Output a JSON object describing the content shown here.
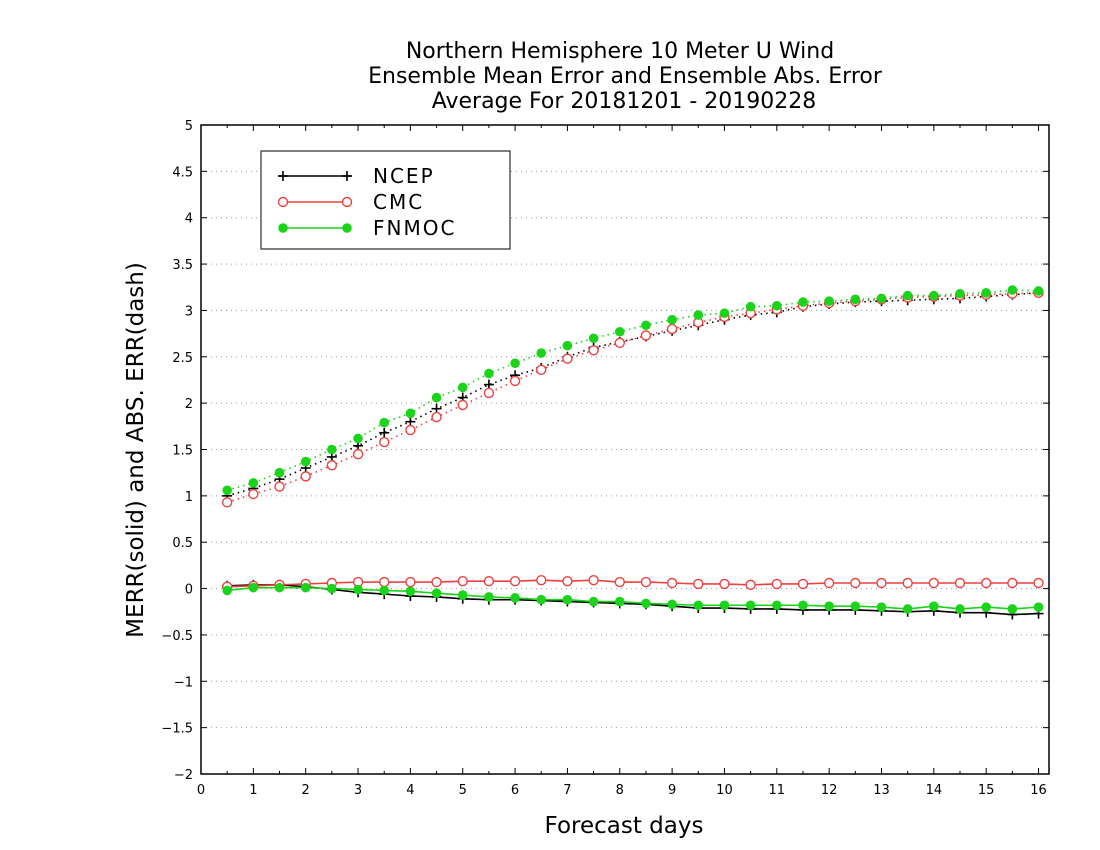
{
  "chart_data": {
    "type": "line",
    "title_lines": [
      "Northern Hemisphere 10 Meter U Wind",
      "Ensemble Mean Error and Ensemble Abs. Error",
      "Average For 20181201 - 20190228"
    ],
    "xlabel": "Forecast days",
    "ylabel": "MERR(solid) and ABS. ERR(dash)",
    "xlim": [
      0,
      16.2
    ],
    "ylim": [
      -2,
      5
    ],
    "xticks": [
      0,
      1,
      2,
      3,
      4,
      5,
      6,
      7,
      8,
      9,
      10,
      11,
      12,
      13,
      14,
      15,
      16
    ],
    "yticks": [
      -2,
      -1.5,
      -1,
      -0.5,
      0,
      0.5,
      1,
      1.5,
      2,
      2.5,
      3,
      3.5,
      4,
      4.5,
      5
    ],
    "ytick_labels": [
      "−2",
      "−1.5",
      "−1",
      "−0.5",
      "0",
      "0.5",
      "1",
      "1.5",
      "2",
      "2.5",
      "3",
      "3.5",
      "4",
      "4.5",
      "5"
    ],
    "grid": "horizontal dotted",
    "legend_position": "top-left",
    "x": [
      0.5,
      1,
      1.5,
      2,
      2.5,
      3,
      3.5,
      4,
      4.5,
      5,
      5.5,
      6,
      6.5,
      7,
      7.5,
      8,
      8.5,
      9,
      9.5,
      10,
      10.5,
      11,
      11.5,
      12,
      12.5,
      13,
      13.5,
      14,
      14.5,
      15,
      15.5,
      16
    ],
    "series": [
      {
        "name": "NCEP",
        "color": "#000000",
        "marker": "plus",
        "abs_err": [
          1.0,
          1.08,
          1.18,
          1.3,
          1.42,
          1.54,
          1.68,
          1.8,
          1.94,
          2.06,
          2.2,
          2.3,
          2.38,
          2.5,
          2.6,
          2.66,
          2.72,
          2.78,
          2.84,
          2.9,
          2.95,
          2.98,
          3.04,
          3.07,
          3.09,
          3.1,
          3.11,
          3.12,
          3.13,
          3.15,
          3.17,
          3.19
        ],
        "mean_err": [
          0.03,
          0.04,
          0.04,
          0.02,
          -0.01,
          -0.04,
          -0.06,
          -0.08,
          -0.09,
          -0.11,
          -0.12,
          -0.12,
          -0.13,
          -0.14,
          -0.15,
          -0.16,
          -0.17,
          -0.19,
          -0.21,
          -0.21,
          -0.22,
          -0.22,
          -0.23,
          -0.23,
          -0.23,
          -0.24,
          -0.25,
          -0.24,
          -0.26,
          -0.26,
          -0.28,
          -0.27
        ]
      },
      {
        "name": "CMC",
        "color": "#ef4040",
        "marker": "open-circle",
        "abs_err": [
          0.93,
          1.02,
          1.1,
          1.21,
          1.33,
          1.45,
          1.58,
          1.71,
          1.85,
          1.98,
          2.11,
          2.24,
          2.36,
          2.48,
          2.57,
          2.65,
          2.73,
          2.8,
          2.87,
          2.93,
          2.97,
          3.01,
          3.05,
          3.08,
          3.1,
          3.12,
          3.14,
          3.15,
          3.16,
          3.17,
          3.18,
          3.19
        ],
        "mean_err": [
          0.02,
          0.03,
          0.04,
          0.05,
          0.06,
          0.07,
          0.07,
          0.07,
          0.07,
          0.08,
          0.08,
          0.08,
          0.09,
          0.08,
          0.09,
          0.07,
          0.07,
          0.06,
          0.05,
          0.05,
          0.04,
          0.05,
          0.05,
          0.06,
          0.06,
          0.06,
          0.06,
          0.06,
          0.06,
          0.06,
          0.06,
          0.06
        ]
      },
      {
        "name": "FNMOC",
        "color": "#1ad31a",
        "marker": "filled-circle",
        "abs_err": [
          1.06,
          1.14,
          1.25,
          1.37,
          1.5,
          1.62,
          1.79,
          1.89,
          2.06,
          2.17,
          2.32,
          2.43,
          2.54,
          2.62,
          2.7,
          2.77,
          2.84,
          2.9,
          2.95,
          2.97,
          3.04,
          3.05,
          3.09,
          3.1,
          3.12,
          3.13,
          3.16,
          3.16,
          3.18,
          3.19,
          3.22,
          3.21
        ],
        "mean_err": [
          -0.02,
          0.01,
          0.01,
          0.01,
          0.0,
          -0.01,
          -0.02,
          -0.03,
          -0.05,
          -0.07,
          -0.09,
          -0.1,
          -0.12,
          -0.12,
          -0.14,
          -0.14,
          -0.16,
          -0.17,
          -0.18,
          -0.18,
          -0.18,
          -0.18,
          -0.18,
          -0.19,
          -0.19,
          -0.2,
          -0.22,
          -0.19,
          -0.22,
          -0.2,
          -0.22,
          -0.2
        ]
      }
    ]
  }
}
